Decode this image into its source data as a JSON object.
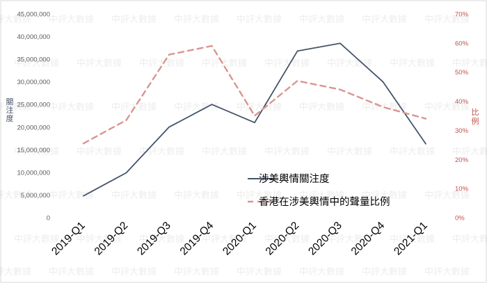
{
  "chart_data": {
    "type": "line",
    "categories": [
      "2019-Q1",
      "2019-Q2",
      "2019-Q3",
      "2019-Q4",
      "2020-Q1",
      "2020-Q2",
      "2020-Q3",
      "2020-Q4",
      "2021-Q1"
    ],
    "series": [
      {
        "name": "涉美輿情關注度",
        "axis": "left",
        "color": "#44546a",
        "style": "solid",
        "values": [
          4800000,
          9900000,
          20000000,
          25000000,
          21000000,
          36800000,
          38500000,
          30000000,
          16300000
        ]
      },
      {
        "name": "香港在涉美輿情中的聲量比例",
        "axis": "right",
        "color": "#d9958f",
        "style": "dashed",
        "values": [
          0.255,
          0.335,
          0.56,
          0.59,
          0.35,
          0.47,
          0.44,
          0.38,
          0.34
        ]
      }
    ],
    "y_left": {
      "label": "關注度",
      "range": [
        0,
        45000000
      ],
      "ticks": [
        "0",
        "5,000,000",
        "10,000,000",
        "15,000,000",
        "20,000,000",
        "25,000,000",
        "30,000,000",
        "35,000,000",
        "40,000,000",
        "45,000,000"
      ]
    },
    "y_right": {
      "label": "比例",
      "range": [
        0,
        0.7
      ],
      "ticks": [
        "0%",
        "10%",
        "20%",
        "30%",
        "40%",
        "50%",
        "60%",
        "70%"
      ]
    },
    "grid": false,
    "legend_position": "lower-right (inside plot)",
    "watermark": "中評大數據"
  }
}
